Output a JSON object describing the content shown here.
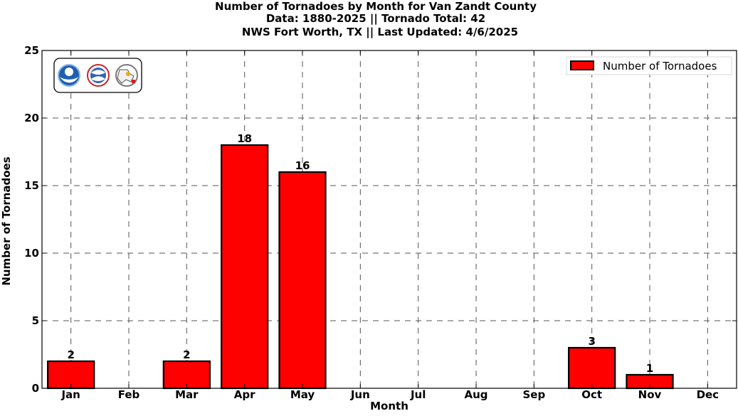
{
  "chart_data": {
    "type": "bar",
    "title_lines": [
      "Number of Tornadoes by Month for Van Zandt County",
      "Data: 1880-2025 || Tornado Total: 42",
      "NWS Fort Worth, TX || Last Updated: 4/6/2025"
    ],
    "xlabel": "Month",
    "ylabel": "Number of Tornadoes",
    "categories": [
      "Jan",
      "Feb",
      "Mar",
      "Apr",
      "May",
      "Jun",
      "Jul",
      "Aug",
      "Sep",
      "Oct",
      "Nov",
      "Dec"
    ],
    "series": [
      {
        "name": "Number of Tornadoes",
        "values": [
          2,
          0,
          2,
          18,
          16,
          0,
          0,
          0,
          0,
          3,
          1,
          0
        ],
        "color": "#ff0000"
      }
    ],
    "data_labels": [
      "2",
      "",
      "2",
      "18",
      "16",
      "",
      "",
      "",
      "",
      "3",
      "1",
      ""
    ],
    "ylim": [
      0,
      25
    ],
    "yticks": [
      0,
      5,
      10,
      15,
      20,
      25
    ],
    "grid": true,
    "legend_position": "top-right",
    "logos": [
      "noaa-logo",
      "nws-logo",
      "nws-fort-worth-logo"
    ]
  }
}
